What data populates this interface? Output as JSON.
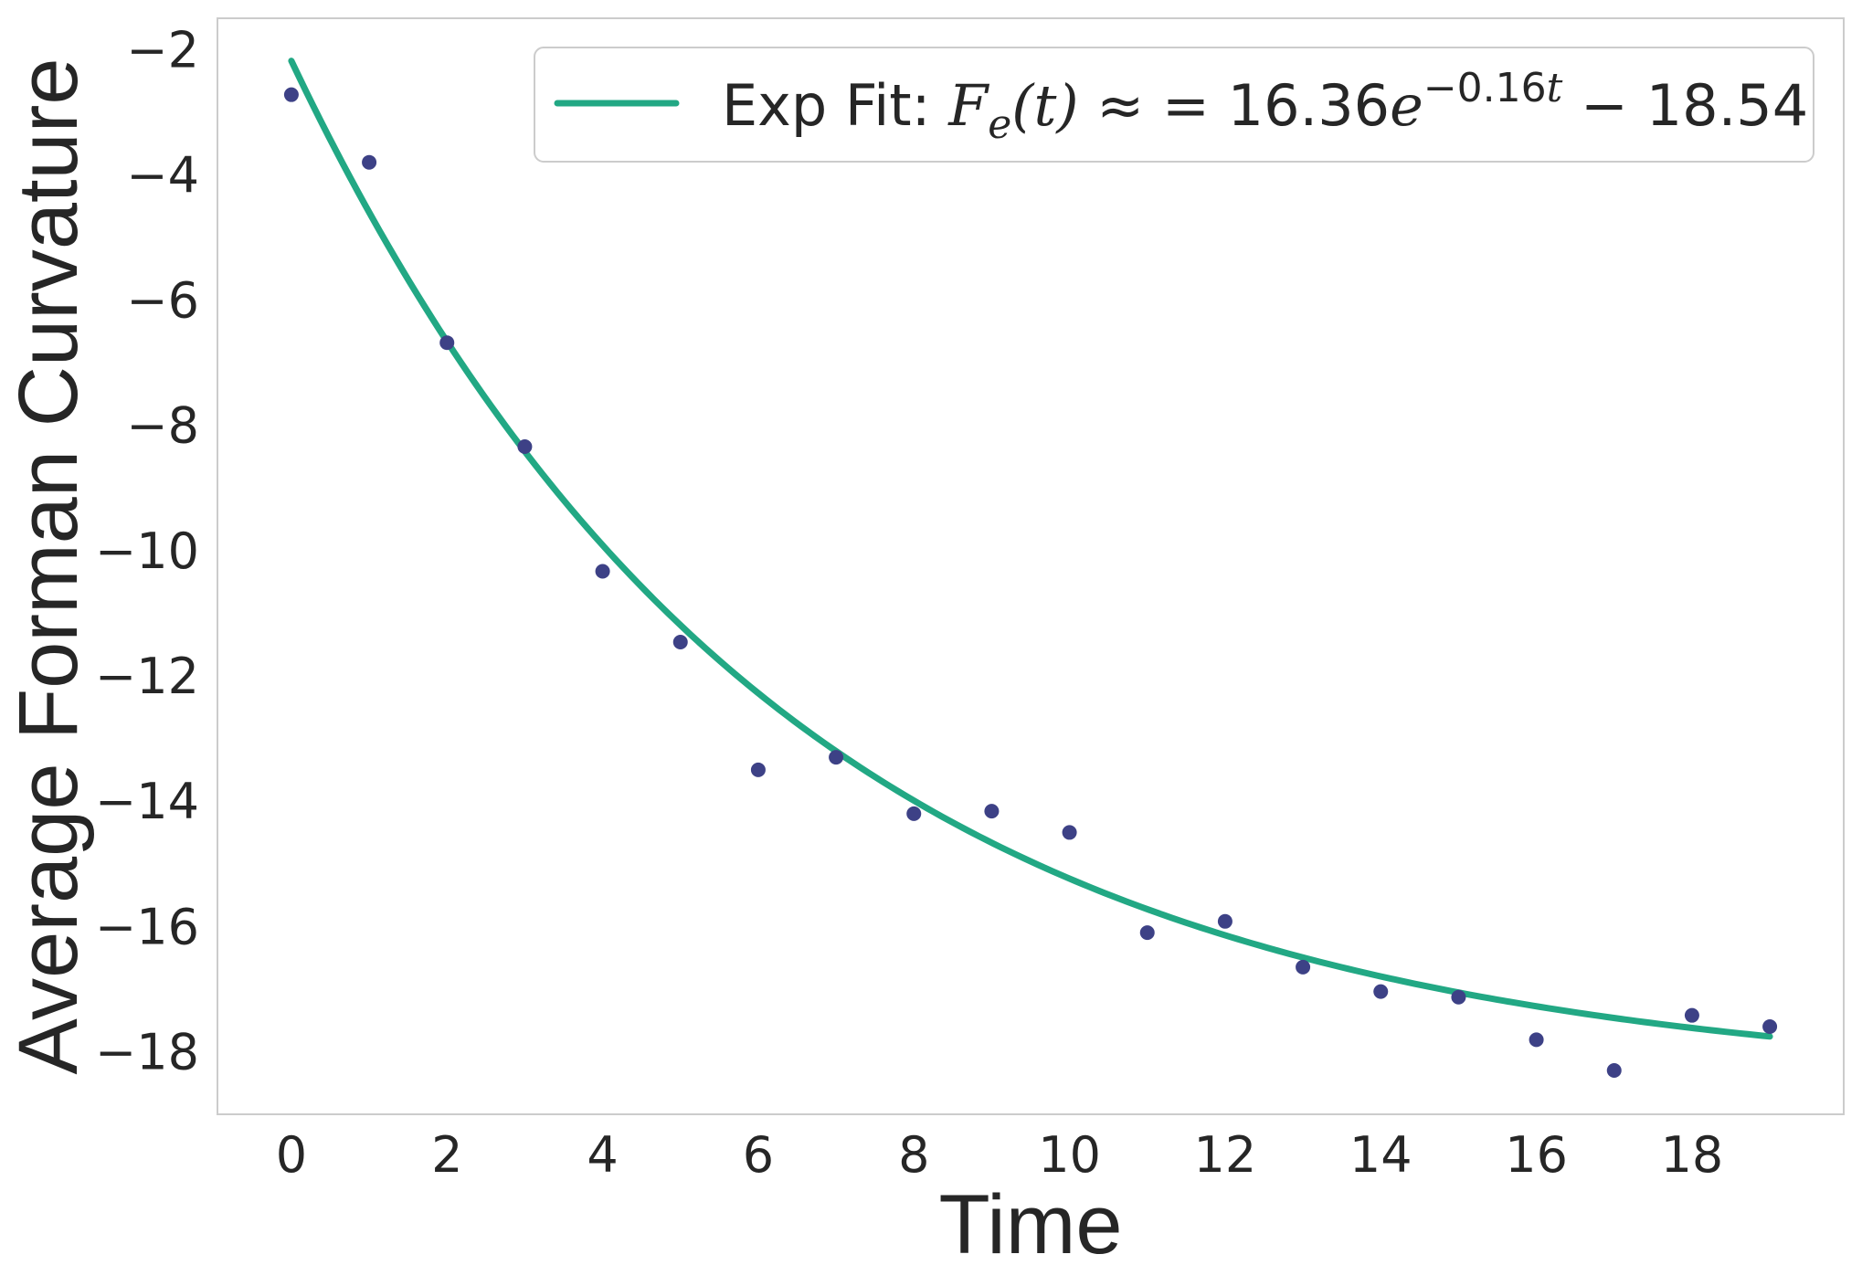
{
  "chart_data": {
    "type": "scatter",
    "xlabel": "Time",
    "ylabel": "Average Forman Curvature",
    "xlim": [
      -0.95,
      19.95
    ],
    "ylim": [
      -19.0,
      -1.5
    ],
    "xticks": [
      0,
      2,
      4,
      6,
      8,
      10,
      12,
      14,
      16,
      18
    ],
    "yticks": [
      -2,
      -4,
      -6,
      -8,
      -10,
      -12,
      -14,
      -16,
      -18
    ],
    "xtick_labels": [
      "0",
      "2",
      "4",
      "6",
      "8",
      "10",
      "12",
      "14",
      "16",
      "18"
    ],
    "ytick_labels": [
      "−2",
      "−4",
      "−6",
      "−8",
      "−10",
      "−12",
      "−14",
      "−16",
      "−18"
    ],
    "grid": false,
    "legend_position": "top-right",
    "series": [
      {
        "kind": "points",
        "color": "#3d4186",
        "x": [
          0,
          1,
          2,
          3,
          4,
          5,
          6,
          7,
          8,
          9,
          10,
          11,
          12,
          13,
          14,
          15,
          16,
          17,
          18,
          19
        ],
        "y": [
          -2.72,
          -3.8,
          -6.68,
          -8.34,
          -10.33,
          -11.46,
          -13.5,
          -13.3,
          -14.2,
          -14.16,
          -14.5,
          -16.1,
          -15.92,
          -16.65,
          -17.04,
          -17.13,
          -17.81,
          -18.3,
          -17.42,
          -17.6
        ]
      },
      {
        "kind": "fit-line",
        "color": "#22a884",
        "label": {
          "prefix": "Exp Fit: ",
          "fn": "F",
          "sub": "e",
          "arg": "(t)",
          "mid": " ≈ = 16.36",
          "base": "e",
          "exp_num": "−0.16",
          "exp_var": "t",
          "tail": " − 18.54"
        },
        "a": 16.36,
        "b": -0.16,
        "c": -18.54
      }
    ]
  }
}
